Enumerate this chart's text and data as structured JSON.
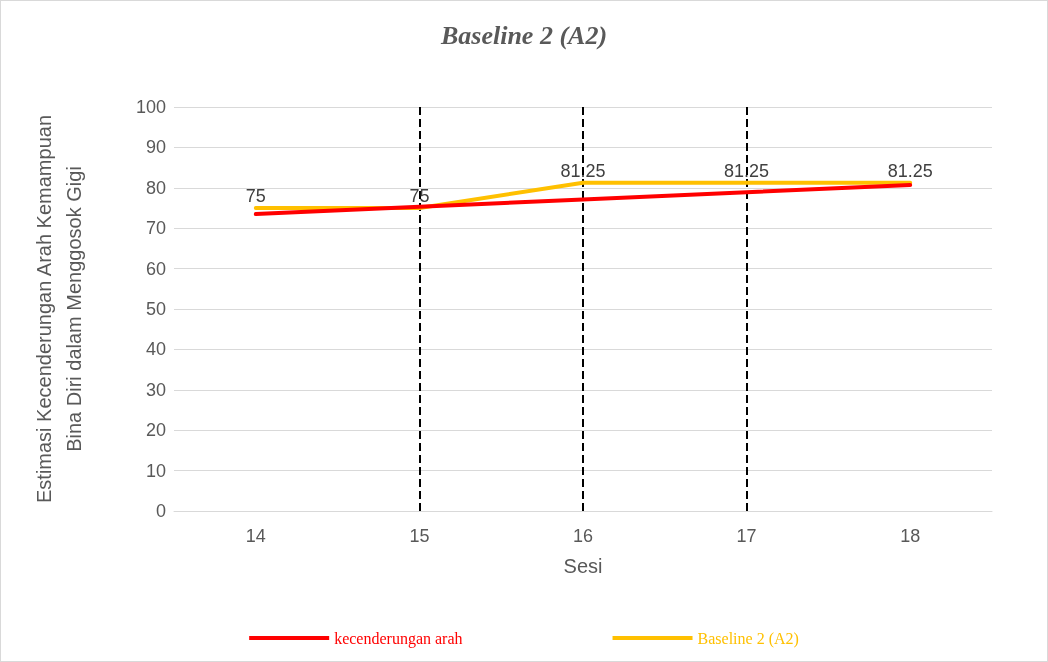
{
  "chart_data": {
    "type": "line",
    "title": "Baseline 2 (A2)",
    "xlabel": "Sesi",
    "ylabel": "Estimasi Kecenderungan Arah Kemampuan Bina Diri dalam Menggosok Gigi",
    "categories": [
      "14",
      "15",
      "16",
      "17",
      "18"
    ],
    "series": [
      {
        "name": "kecenderungan arah",
        "color": "#ff0000",
        "values": [
          73.5,
          75.3,
          77.1,
          78.9,
          80.7
        ]
      },
      {
        "name": "Baseline 2 (A2)",
        "color": "#ffc000",
        "values": [
          75,
          75,
          81.25,
          81.25,
          81.25
        ],
        "value_labels": [
          "75",
          "75",
          "81.25",
          "81.25",
          "81.25"
        ]
      }
    ],
    "ylim": [
      0,
      100
    ],
    "yticks": [
      0,
      10,
      20,
      30,
      40,
      50,
      60,
      70,
      80,
      90,
      100
    ],
    "grid": "y",
    "legend": "bottom",
    "marker": "none",
    "line_style": "solid",
    "ref_lines": [
      {
        "axis": "x",
        "value": "15",
        "color": "#000000",
        "line_style": "dashed"
      },
      {
        "axis": "x",
        "value": "16",
        "color": "#000000",
        "line_style": "dashed"
      },
      {
        "axis": "x",
        "value": "17",
        "color": "#000000",
        "line_style": "dashed"
      }
    ]
  }
}
